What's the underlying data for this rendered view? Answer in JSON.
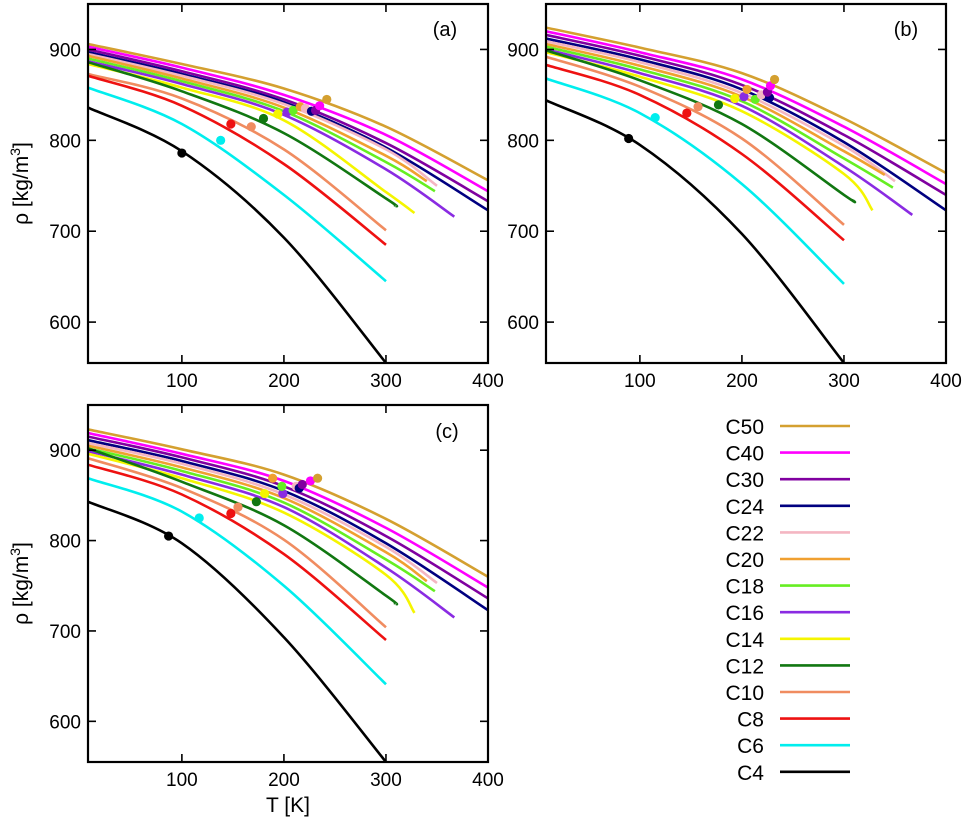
{
  "chart_data": [
    {
      "type": "line",
      "panel_label": "(a)",
      "ylabel": "ρ [kg/m",
      "ylabel_sup": "3",
      "ylabel_close": "]",
      "xlabel": "",
      "xlim": [
        8,
        400
      ],
      "ylim": [
        555,
        950
      ],
      "xticks": [
        "100",
        "200",
        "300",
        "400"
      ],
      "yticks": [
        "600",
        "700",
        "800",
        "900"
      ],
      "grid": false,
      "series": [
        {
          "name": "C50",
          "color": "#d4a030",
          "x": [
            8,
            100,
            200,
            300,
            400
          ],
          "y": [
            906,
            884,
            857,
            815,
            756
          ],
          "marker": [
            242,
            845
          ]
        },
        {
          "name": "C40",
          "color": "#ff00ff",
          "x": [
            8,
            100,
            200,
            300,
            400
          ],
          "y": [
            903,
            880,
            850,
            806,
            744
          ],
          "marker": [
            235,
            838
          ]
        },
        {
          "name": "C30",
          "color": "#8000a0",
          "x": [
            8,
            100,
            200,
            300,
            400
          ],
          "y": [
            900,
            876,
            845,
            797,
            733
          ],
          "marker": [
            231,
            833
          ]
        },
        {
          "name": "C24",
          "color": "#000080",
          "x": [
            8,
            100,
            200,
            300,
            400
          ],
          "y": [
            897,
            873,
            842,
            792,
            723
          ],
          "marker": [
            227,
            832
          ]
        },
        {
          "name": "C22",
          "color": "#f4b6c2",
          "x": [
            8,
            100,
            200,
            300,
            350
          ],
          "y": [
            895,
            871,
            840,
            790,
            750
          ],
          "marker": [
            221,
            835
          ]
        },
        {
          "name": "C20",
          "color": "#f0a030",
          "x": [
            8,
            100,
            200,
            300,
            340
          ],
          "y": [
            893,
            868,
            836,
            783,
            755
          ],
          "marker": [
            216,
            837
          ]
        },
        {
          "name": "C18",
          "color": "#66ee22",
          "x": [
            8,
            100,
            200,
            300,
            348
          ],
          "y": [
            890,
            865,
            832,
            776,
            744
          ],
          "marker": [
            209,
            833
          ]
        },
        {
          "name": "C16",
          "color": "#8a2be2",
          "x": [
            8,
            100,
            200,
            300,
            367
          ],
          "y": [
            887,
            862,
            828,
            768,
            716
          ],
          "marker": [
            203,
            831
          ]
        },
        {
          "name": "C14",
          "color": "#f5f500",
          "x": [
            8,
            100,
            200,
            300,
            328
          ],
          "y": [
            884,
            858,
            822,
            743,
            720
          ],
          "marker": [
            194,
            829
          ]
        },
        {
          "name": "C12",
          "color": "#117711",
          "x": [
            8,
            100,
            200,
            300,
            309
          ],
          "y": [
            886,
            854,
            808,
            736,
            728
          ],
          "marker": [
            180,
            824
          ]
        },
        {
          "name": "C10",
          "color": "#f08c60",
          "x": [
            8,
            100,
            200,
            300
          ],
          "y": [
            873,
            846,
            790,
            701
          ],
          "marker": [
            168,
            815
          ]
        },
        {
          "name": "C8",
          "color": "#ee1111",
          "x": [
            8,
            100,
            200,
            300
          ],
          "y": [
            871,
            838,
            774,
            685
          ],
          "marker": [
            148,
            818
          ]
        },
        {
          "name": "C6",
          "color": "#00eeee",
          "x": [
            8,
            100,
            200,
            300
          ],
          "y": [
            858,
            818,
            740,
            645
          ],
          "marker": [
            138,
            800
          ]
        },
        {
          "name": "C4",
          "color": "#000000",
          "x": [
            8,
            100,
            200,
            300
          ],
          "y": [
            836,
            788,
            693,
            555
          ],
          "marker": [
            100,
            786
          ]
        }
      ]
    },
    {
      "type": "line",
      "panel_label": "(b)",
      "ylabel": "",
      "xlabel": "",
      "xlim": [
        8,
        400
      ],
      "ylim": [
        555,
        950
      ],
      "xticks": [
        "100",
        "200",
        "300",
        "400"
      ],
      "yticks": [
        "600",
        "700",
        "800",
        "900"
      ],
      "grid": false,
      "series": [
        {
          "name": "C50",
          "color": "#d4a030",
          "x": [
            8,
            100,
            200,
            300,
            400
          ],
          "y": [
            924,
            902,
            874,
            824,
            764
          ],
          "marker": [
            232,
            867
          ]
        },
        {
          "name": "C40",
          "color": "#ff00ff",
          "x": [
            8,
            100,
            200,
            300,
            400
          ],
          "y": [
            920,
            897,
            867,
            815,
            752
          ],
          "marker": [
            228,
            860
          ]
        },
        {
          "name": "C30",
          "color": "#8000a0",
          "x": [
            8,
            100,
            200,
            300,
            400
          ],
          "y": [
            916,
            893,
            861,
            806,
            740
          ],
          "marker": [
            225,
            853
          ]
        },
        {
          "name": "C24",
          "color": "#000080",
          "x": [
            8,
            100,
            200,
            300,
            400
          ],
          "y": [
            912,
            889,
            856,
            798,
            723
          ],
          "marker": [
            227,
            847
          ]
        },
        {
          "name": "C22",
          "color": "#f4b6c2",
          "x": [
            8,
            100,
            200,
            300,
            350
          ],
          "y": [
            909,
            886,
            852,
            794,
            755
          ],
          "marker": [
            219,
            850
          ]
        },
        {
          "name": "C20",
          "color": "#f0a030",
          "x": [
            8,
            100,
            200,
            300,
            340
          ],
          "y": [
            906,
            882,
            848,
            788,
            762
          ],
          "marker": [
            205,
            856
          ]
        },
        {
          "name": "C18",
          "color": "#66ee22",
          "x": [
            8,
            100,
            200,
            300,
            348
          ],
          "y": [
            903,
            878,
            843,
            780,
            748
          ],
          "marker": [
            213,
            845
          ]
        },
        {
          "name": "C16",
          "color": "#8a2be2",
          "x": [
            8,
            100,
            200,
            300,
            367
          ],
          "y": [
            900,
            874,
            838,
            771,
            718
          ],
          "marker": [
            202,
            848
          ]
        },
        {
          "name": "C14",
          "color": "#f5f500",
          "x": [
            8,
            100,
            200,
            300,
            328
          ],
          "y": [
            897,
            870,
            832,
            763,
            723
          ],
          "marker": [
            193,
            846
          ]
        },
        {
          "name": "C12",
          "color": "#117711",
          "x": [
            8,
            100,
            200,
            300,
            309
          ],
          "y": [
            899,
            866,
            818,
            740,
            734
          ],
          "marker": [
            177,
            839
          ]
        },
        {
          "name": "C10",
          "color": "#f08c60",
          "x": [
            8,
            100,
            200,
            300
          ],
          "y": [
            892,
            859,
            802,
            707
          ],
          "marker": [
            157,
            837
          ]
        },
        {
          "name": "C8",
          "color": "#ee1111",
          "x": [
            8,
            100,
            200,
            300
          ],
          "y": [
            883,
            850,
            785,
            690
          ],
          "marker": [
            146,
            830
          ]
        },
        {
          "name": "C6",
          "color": "#00eeee",
          "x": [
            8,
            100,
            200,
            300
          ],
          "y": [
            868,
            830,
            752,
            642
          ],
          "marker": [
            115,
            825
          ]
        },
        {
          "name": "C4",
          "color": "#000000",
          "x": [
            8,
            100,
            200,
            300
          ],
          "y": [
            844,
            795,
            697,
            555
          ],
          "marker": [
            89,
            802
          ]
        }
      ]
    },
    {
      "type": "line",
      "panel_label": "(c)",
      "ylabel": "ρ [kg/m",
      "ylabel_sup": "3",
      "ylabel_close": "]",
      "xlabel": "T [K]",
      "xlim": [
        8,
        400
      ],
      "ylim": [
        555,
        950
      ],
      "xticks": [
        "100",
        "200",
        "300",
        "400"
      ],
      "yticks": [
        "600",
        "700",
        "800",
        "900"
      ],
      "grid": false,
      "series": [
        {
          "name": "C50",
          "color": "#d4a030",
          "x": [
            8,
            100,
            200,
            300,
            400
          ],
          "y": [
            923,
            901,
            873,
            824,
            760
          ],
          "marker": [
            233,
            869
          ]
        },
        {
          "name": "C40",
          "color": "#ff00ff",
          "x": [
            8,
            100,
            200,
            300,
            400
          ],
          "y": [
            919,
            896,
            866,
            814,
            748
          ],
          "marker": [
            226,
            866
          ]
        },
        {
          "name": "C30",
          "color": "#8000a0",
          "x": [
            8,
            100,
            200,
            300,
            400
          ],
          "y": [
            915,
            892,
            860,
            805,
            736
          ],
          "marker": [
            218,
            862
          ]
        },
        {
          "name": "C24",
          "color": "#000080",
          "x": [
            8,
            100,
            200,
            300,
            400
          ],
          "y": [
            911,
            888,
            855,
            797,
            723
          ],
          "marker": [
            215,
            858
          ]
        },
        {
          "name": "C22",
          "color": "#f4b6c2",
          "x": [
            8,
            100,
            200,
            300,
            350
          ],
          "y": [
            908,
            885,
            851,
            793,
            753
          ],
          "marker": [
            212,
            860
          ]
        },
        {
          "name": "C20",
          "color": "#f0a030",
          "x": [
            8,
            100,
            200,
            300,
            340
          ],
          "y": [
            905,
            881,
            847,
            787,
            755
          ],
          "marker": [
            189,
            869
          ]
        },
        {
          "name": "C18",
          "color": "#66ee22",
          "x": [
            8,
            100,
            200,
            300,
            348
          ],
          "y": [
            902,
            877,
            842,
            779,
            744
          ],
          "marker": [
            198,
            860
          ]
        },
        {
          "name": "C16",
          "color": "#8a2be2",
          "x": [
            8,
            100,
            200,
            300,
            367
          ],
          "y": [
            899,
            873,
            837,
            770,
            715
          ],
          "marker": [
            199,
            852
          ]
        },
        {
          "name": "C14",
          "color": "#f5f500",
          "x": [
            8,
            100,
            200,
            300,
            328
          ],
          "y": [
            896,
            869,
            831,
            762,
            720
          ],
          "marker": [
            181,
            852
          ]
        },
        {
          "name": "C12",
          "color": "#117711",
          "x": [
            8,
            100,
            200,
            300,
            309
          ],
          "y": [
            902,
            865,
            817,
            739,
            730
          ],
          "marker": [
            173,
            843
          ]
        },
        {
          "name": "C10",
          "color": "#f08c60",
          "x": [
            8,
            100,
            200,
            300
          ],
          "y": [
            891,
            858,
            801,
            704
          ],
          "marker": [
            155,
            837
          ]
        },
        {
          "name": "C8",
          "color": "#ee1111",
          "x": [
            8,
            100,
            200,
            300
          ],
          "y": [
            884,
            851,
            785,
            690
          ],
          "marker": [
            148,
            830
          ]
        },
        {
          "name": "C6",
          "color": "#00eeee",
          "x": [
            8,
            100,
            200,
            300
          ],
          "y": [
            869,
            832,
            750,
            641
          ],
          "marker": [
            117,
            825
          ]
        },
        {
          "name": "C4",
          "color": "#000000",
          "x": [
            8,
            100,
            200,
            300
          ],
          "y": [
            843,
            797,
            693,
            555
          ],
          "marker": [
            87,
            805
          ]
        }
      ]
    }
  ],
  "legend": {
    "entries": [
      {
        "label": "C50",
        "color": "#d4a030"
      },
      {
        "label": "C40",
        "color": "#ff00ff"
      },
      {
        "label": "C30",
        "color": "#8000a0"
      },
      {
        "label": "C24",
        "color": "#000080"
      },
      {
        "label": "C22",
        "color": "#f4b6c2"
      },
      {
        "label": "C20",
        "color": "#f0a030"
      },
      {
        "label": "C18",
        "color": "#66ee22"
      },
      {
        "label": "C16",
        "color": "#8a2be2"
      },
      {
        "label": "C14",
        "color": "#f5f500"
      },
      {
        "label": "C12",
        "color": "#117711"
      },
      {
        "label": "C10",
        "color": "#f08c60"
      },
      {
        "label": "C8",
        "color": "#ee1111"
      },
      {
        "label": "C6",
        "color": "#00eeee"
      },
      {
        "label": "C4",
        "color": "#000000"
      }
    ]
  }
}
